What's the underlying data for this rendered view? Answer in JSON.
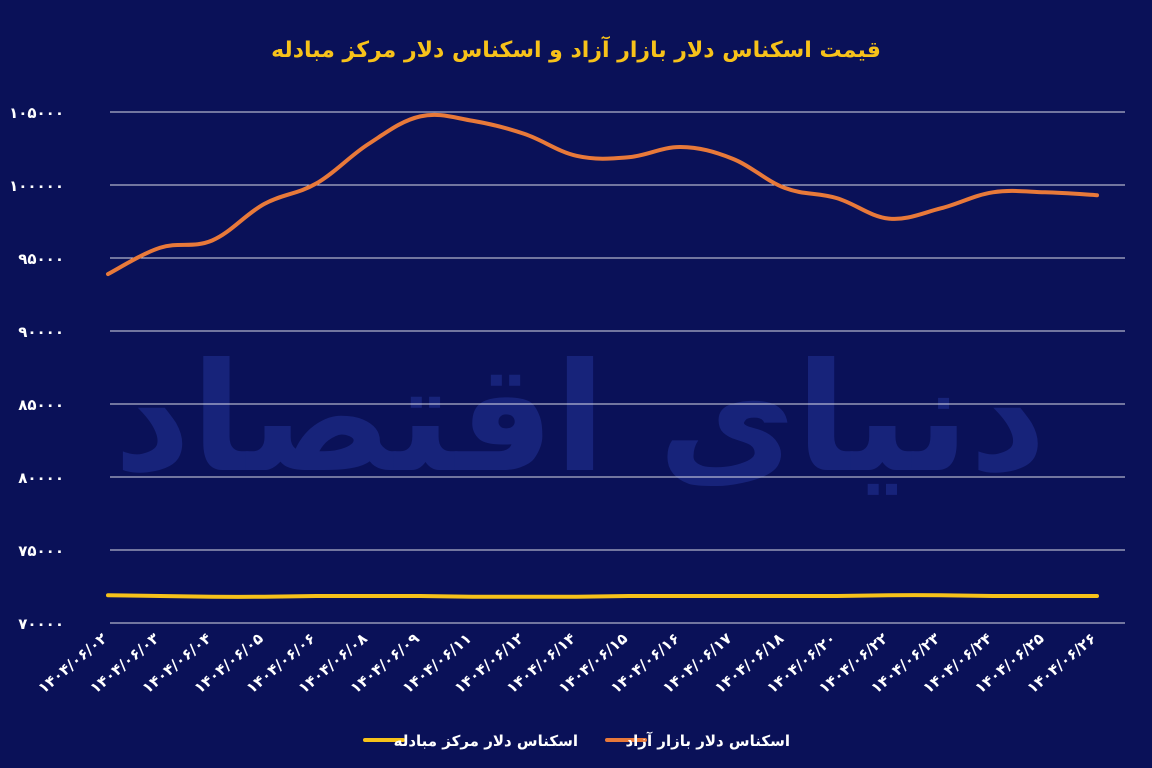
{
  "chart_data": {
    "type": "line",
    "title": "قیمت اسکناس دلار بازار آزاد و اسکناس دلار مرکز مبادله",
    "watermark": "دنیای اقتصاد",
    "categories": [
      "۱۴۰۴/۰۶/۰۲",
      "۱۴۰۴/۰۶/۰۳",
      "۱۴۰۴/۰۶/۰۴",
      "۱۴۰۴/۰۶/۰۵",
      "۱۴۰۴/۰۶/۰۶",
      "۱۴۰۴/۰۶/۰۸",
      "۱۴۰۴/۰۶/۰۹",
      "۱۴۰۴/۰۶/۱۱",
      "۱۴۰۴/۰۶/۱۲",
      "۱۴۰۴/۰۶/۱۴",
      "۱۴۰۴/۰۶/۱۵",
      "۱۴۰۴/۰۶/۱۶",
      "۱۴۰۴/۰۶/۱۷",
      "۱۴۰۴/۰۶/۱۸",
      "۱۴۰۴/۰۶/۲۰",
      "۱۴۰۴/۰۶/۲۲",
      "۱۴۰۴/۰۶/۲۳",
      "۱۴۰۴/۰۶/۲۴",
      "۱۴۰۴/۰۶/۲۵",
      "۱۴۰۴/۰۶/۲۶"
    ],
    "ylim": [
      70000,
      105000
    ],
    "yticks": [
      70000,
      75000,
      80000,
      85000,
      90000,
      95000,
      100000,
      105000
    ],
    "ytick_labels": [
      "۷۰۰۰۰",
      "۷۵۰۰۰",
      "۸۰۰۰۰",
      "۸۵۰۰۰",
      "۹۰۰۰۰",
      "۹۵۰۰۰",
      "۱۰۰۰۰۰",
      "۱۰۵۰۰۰"
    ],
    "grid": true,
    "legend_position": "bottom",
    "series": [
      {
        "name": "اسکناس دلار مرکز مبادله",
        "color": "#f7c21a",
        "values": [
          71900,
          71850,
          71800,
          71800,
          71850,
          71850,
          71850,
          71800,
          71800,
          71800,
          71850,
          71850,
          71850,
          71850,
          71850,
          71900,
          71900,
          71850,
          71850,
          71850
        ]
      },
      {
        "name": "اسکناس دلار بازار آزاد",
        "color": "#e8793a",
        "values": [
          93900,
          95700,
          96200,
          98700,
          100100,
          102800,
          104700,
          104400,
          103500,
          102000,
          101900,
          102600,
          101800,
          99800,
          99100,
          97700,
          98400,
          99500,
          99500,
          99300
        ]
      }
    ]
  }
}
